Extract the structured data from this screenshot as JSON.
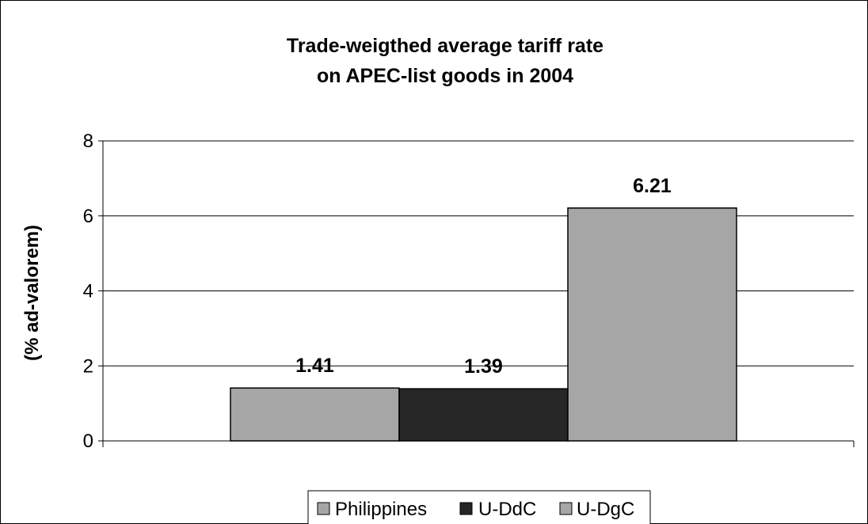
{
  "chart_data": {
    "type": "bar",
    "title_lines": [
      "Trade-weigthed average tariff rate",
      "on APEC-list goods in 2004"
    ],
    "ylabel": "(% ad-valorem)",
    "xlabel": "",
    "ylim": [
      0,
      8
    ],
    "yticks": [
      0,
      2,
      4,
      6,
      8
    ],
    "grid": true,
    "legend_position": "bottom",
    "series": [
      {
        "name": "Philippines",
        "values": [
          1.41
        ],
        "label": "1.41",
        "color": "#a6a6a6"
      },
      {
        "name": "U-DdC",
        "values": [
          1.39
        ],
        "label": "1.39",
        "color": "#262626"
      },
      {
        "name": "U-DgC",
        "values": [
          6.21
        ],
        "label": "6.21",
        "color": "#a6a6a6"
      }
    ]
  }
}
